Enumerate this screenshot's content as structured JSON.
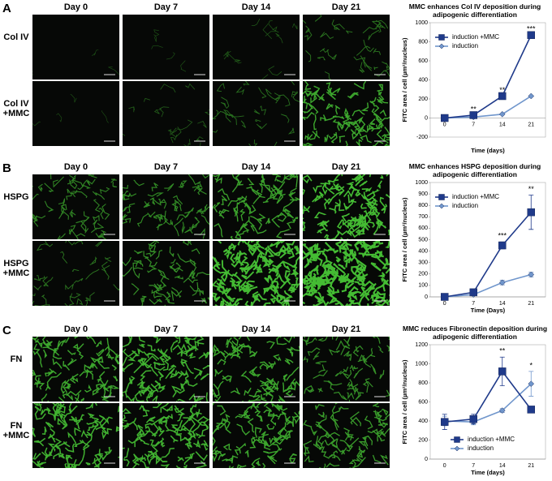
{
  "panels": [
    {
      "letter": "A",
      "days": [
        "Day 0",
        "Day 7",
        "Day 14",
        "Day 21"
      ],
      "rows": [
        "Col IV",
        "Col IV +MMC"
      ]
    },
    {
      "letter": "B",
      "days": [
        "Day 0",
        "Day 7",
        "Day 14",
        "Day 21"
      ],
      "rows": [
        "HSPG",
        "HSPG +MMC"
      ]
    },
    {
      "letter": "C",
      "days": [
        "Day 0",
        "Day 7",
        "Day 14",
        "Day 21"
      ],
      "rows": [
        "FN",
        "FN +MMC"
      ]
    }
  ],
  "chart_data": [
    {
      "type": "line",
      "title": "MMC enhances Col IV deposition during adipogenic differentiation",
      "xlabel": "Time (days)",
      "ylabel": "FITC area / cell (µm²/nucleus)",
      "categories": [
        "0",
        "7",
        "14",
        "21"
      ],
      "ylim": [
        -200,
        1000
      ],
      "yticks": [
        -200,
        0,
        200,
        400,
        600,
        800,
        1000
      ],
      "legend": "upper left",
      "series": [
        {
          "name": "induction +MMC",
          "color": "#1f3a8a",
          "marker": "square",
          "values": [
            0,
            30,
            230,
            870
          ]
        },
        {
          "name": "induction",
          "color": "#7096cc",
          "marker": "diamond",
          "values": [
            0,
            10,
            40,
            230
          ]
        }
      ],
      "annotations": [
        {
          "x": "7",
          "text": "**"
        },
        {
          "x": "14",
          "text": "**"
        },
        {
          "x": "21",
          "text": "***"
        }
      ]
    },
    {
      "type": "line",
      "title": "MMC enhances HSPG deposition during adipogenic differentiation",
      "xlabel": "Time (Days)",
      "ylabel": "FITC area / cell (µm²/nucleus)",
      "categories": [
        "0",
        "7",
        "14",
        "21"
      ],
      "ylim": [
        0,
        1000
      ],
      "yticks": [
        0,
        100,
        200,
        300,
        400,
        500,
        600,
        700,
        800,
        900,
        1000
      ],
      "legend": "upper left",
      "series": [
        {
          "name": "induction +MMC",
          "color": "#1f3a8a",
          "marker": "square",
          "values": [
            0,
            40,
            450,
            740
          ],
          "errors": [
            20,
            20,
            30,
            150
          ]
        },
        {
          "name": "induction",
          "color": "#7096cc",
          "marker": "diamond",
          "values": [
            0,
            20,
            125,
            195
          ],
          "errors": [
            10,
            10,
            20,
            20
          ]
        }
      ],
      "annotations": [
        {
          "x": "14",
          "text": "***"
        },
        {
          "x": "21",
          "text": "**"
        }
      ]
    },
    {
      "type": "line",
      "title": "MMC reduces Fibronectin deposition during adipogenic differentiation",
      "xlabel": "Time (days)",
      "ylabel": "FITC area / cell (µm²/nucleus)",
      "categories": [
        "0",
        "7",
        "14",
        "21"
      ],
      "ylim": [
        0,
        1200
      ],
      "yticks": [
        0,
        200,
        400,
        600,
        800,
        1000,
        1200
      ],
      "legend": "lower center",
      "series": [
        {
          "name": "induction +MMC",
          "color": "#1f3a8a",
          "marker": "square",
          "values": [
            390,
            420,
            920,
            520
          ],
          "errors": [
            80,
            50,
            150,
            30
          ]
        },
        {
          "name": "induction",
          "color": "#7096cc",
          "marker": "diamond",
          "values": [
            400,
            390,
            510,
            790
          ],
          "errors": [
            50,
            30,
            20,
            130
          ]
        }
      ],
      "annotations": [
        {
          "x": "14",
          "text": "**"
        },
        {
          "x": "21",
          "text": "*"
        }
      ]
    }
  ]
}
